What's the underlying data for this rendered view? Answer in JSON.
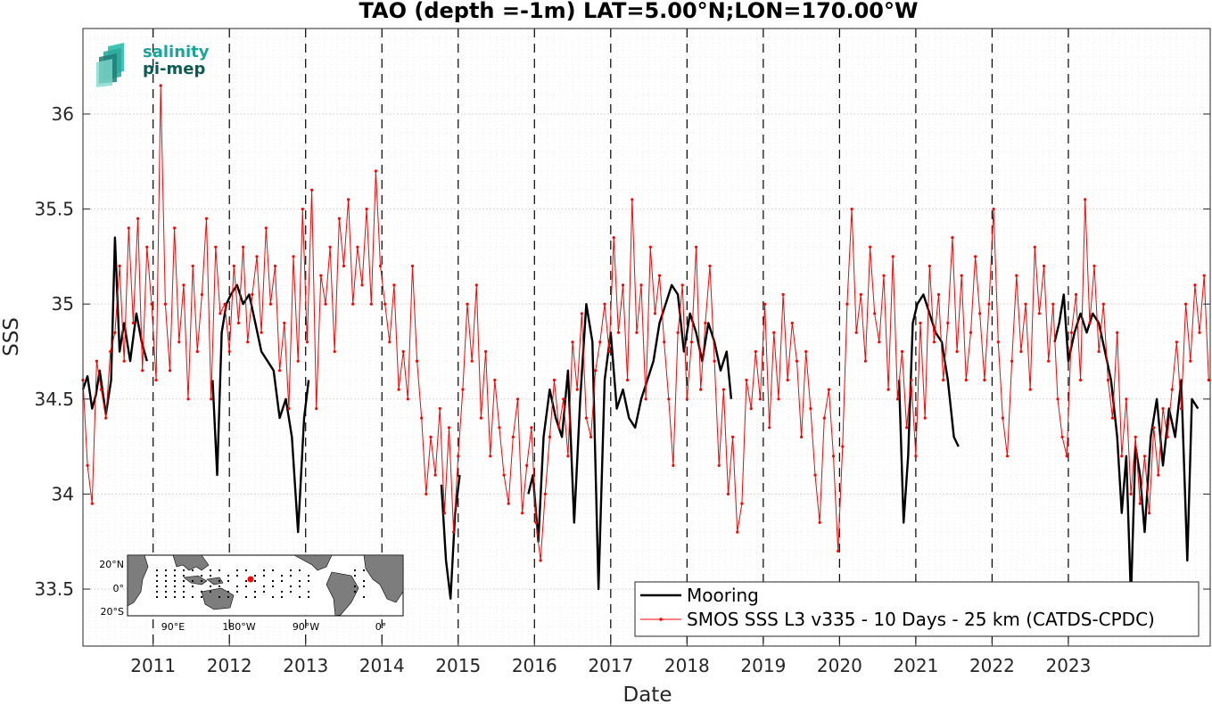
{
  "chart_data": {
    "type": "line",
    "title": "TAO (depth =-1m) LAT=5.00°N;LON=170.00°W",
    "xlabel": "Date",
    "ylabel": "SSS",
    "ylim": [
      33.2,
      36.45
    ],
    "xlim": [
      2010.08,
      2024.86
    ],
    "grid": true,
    "yticks": [
      33.5,
      34,
      34.5,
      35,
      35.5,
      36
    ],
    "xticks": [
      "2011",
      "2012",
      "2013",
      "2014",
      "2015",
      "2016",
      "2017",
      "2018",
      "2019",
      "2020",
      "2021",
      "2022",
      "2023"
    ],
    "legend_position": "bottom-right",
    "series": [
      {
        "name": "Mooring",
        "color": "#000000",
        "segments": [
          {
            "x": [
              2010.08,
              2010.14,
              2010.2,
              2010.25,
              2010.3,
              2010.38,
              2010.45,
              2010.5,
              2010.56,
              2010.62,
              2010.7,
              2010.78,
              2010.85,
              2010.92
            ],
            "y": [
              34.55,
              34.62,
              34.45,
              34.52,
              34.65,
              34.42,
              34.6,
              35.35,
              34.75,
              34.9,
              34.7,
              34.95,
              34.8,
              34.7
            ]
          },
          {
            "x": [
              2011.78,
              2011.84,
              2011.9,
              2011.96,
              2012.02,
              2012.1,
              2012.18,
              2012.26,
              2012.34,
              2012.42,
              2012.5,
              2012.58,
              2012.66,
              2012.74,
              2012.82,
              2012.9,
              2012.98,
              2013.04
            ],
            "y": [
              34.6,
              34.1,
              34.85,
              35.0,
              35.05,
              35.1,
              35.0,
              35.05,
              34.9,
              34.75,
              34.7,
              34.65,
              34.4,
              34.5,
              34.3,
              33.8,
              34.4,
              34.6
            ]
          },
          {
            "x": [
              2014.78,
              2014.84,
              2014.9,
              2014.96,
              2015.02
            ],
            "y": [
              34.05,
              33.65,
              33.45,
              33.9,
              34.1
            ]
          },
          {
            "x": [
              2015.92,
              2015.98,
              2016.05,
              2016.12,
              2016.2,
              2016.28,
              2016.36,
              2016.44,
              2016.52,
              2016.6,
              2016.68,
              2016.76,
              2016.84,
              2016.92,
              2017.0,
              2017.08,
              2017.16,
              2017.24,
              2017.32,
              2017.4,
              2017.48,
              2017.56,
              2017.64,
              2017.72,
              2017.8,
              2017.88,
              2017.96,
              2018.04,
              2018.12,
              2018.2,
              2018.28,
              2018.36,
              2018.44,
              2018.52,
              2018.58
            ],
            "y": [
              34.0,
              34.1,
              33.75,
              34.3,
              34.55,
              34.4,
              34.3,
              34.65,
              33.85,
              34.5,
              35.0,
              34.8,
              33.5,
              34.6,
              34.85,
              34.45,
              34.55,
              34.4,
              34.35,
              34.5,
              34.6,
              34.7,
              34.9,
              35.0,
              35.1,
              35.05,
              34.75,
              34.95,
              34.85,
              34.7,
              34.9,
              34.8,
              34.65,
              34.75,
              34.5
            ]
          },
          {
            "x": [
              2020.78,
              2020.84,
              2020.9,
              2020.96,
              2021.02,
              2021.1,
              2021.18,
              2021.26,
              2021.34,
              2021.42,
              2021.5,
              2021.56
            ],
            "y": [
              34.6,
              33.85,
              34.2,
              34.9,
              35.0,
              35.05,
              34.95,
              34.85,
              34.8,
              34.6,
              34.3,
              34.25
            ]
          },
          {
            "x": [
              2022.82,
              2022.88,
              2022.94,
              2023.0,
              2023.08,
              2023.16,
              2023.24,
              2023.32,
              2023.4,
              2023.48,
              2023.56,
              2023.64,
              2023.7,
              2023.76,
              2023.82,
              2023.88,
              2023.94,
              2024.0,
              2024.08,
              2024.16,
              2024.24,
              2024.32,
              2024.4,
              2024.48,
              2024.56,
              2024.62,
              2024.7
            ],
            "y": [
              34.8,
              34.9,
              35.05,
              34.7,
              34.85,
              34.95,
              34.85,
              34.95,
              34.9,
              34.75,
              34.6,
              34.3,
              33.9,
              34.2,
              33.45,
              34.25,
              34.1,
              33.8,
              34.3,
              34.5,
              34.15,
              34.45,
              34.3,
              34.6,
              33.65,
              34.5,
              34.45
            ]
          }
        ]
      },
      {
        "name": "SMOS SSS L3 v335 - 10 Days - 25 km (CATDS-CPDC)",
        "color": "#ff0000",
        "marker": "dot",
        "x": [
          2010.08,
          2010.14,
          2010.2,
          2010.26,
          2010.32,
          2010.38,
          2010.44,
          2010.5,
          2010.56,
          2010.62,
          2010.68,
          2010.74,
          2010.8,
          2010.86,
          2010.92,
          2010.98,
          2011.04,
          2011.1,
          2011.16,
          2011.22,
          2011.28,
          2011.34,
          2011.4,
          2011.46,
          2011.52,
          2011.58,
          2011.64,
          2011.7,
          2011.76,
          2011.82,
          2011.88,
          2011.94,
          2012.0,
          2012.06,
          2012.12,
          2012.18,
          2012.24,
          2012.3,
          2012.36,
          2012.42,
          2012.48,
          2012.54,
          2012.6,
          2012.66,
          2012.72,
          2012.78,
          2012.84,
          2012.9,
          2012.96,
          2013.02,
          2013.08,
          2013.14,
          2013.2,
          2013.26,
          2013.32,
          2013.38,
          2013.44,
          2013.5,
          2013.56,
          2013.62,
          2013.68,
          2013.74,
          2013.8,
          2013.86,
          2013.92,
          2013.98,
          2014.04,
          2014.1,
          2014.16,
          2014.22,
          2014.28,
          2014.34,
          2014.4,
          2014.46,
          2014.52,
          2014.58,
          2014.64,
          2014.7,
          2014.76,
          2014.82,
          2014.88,
          2014.94,
          2015.0,
          2015.06,
          2015.12,
          2015.18,
          2015.24,
          2015.3,
          2015.36,
          2015.42,
          2015.48,
          2015.54,
          2015.6,
          2015.66,
          2015.72,
          2015.78,
          2015.84,
          2015.9,
          2015.96,
          2016.02,
          2016.08,
          2016.14,
          2016.2,
          2016.26,
          2016.32,
          2016.38,
          2016.44,
          2016.5,
          2016.56,
          2016.62,
          2016.68,
          2016.74,
          2016.8,
          2016.86,
          2016.92,
          2016.98,
          2017.04,
          2017.1,
          2017.16,
          2017.22,
          2017.28,
          2017.34,
          2017.4,
          2017.46,
          2017.52,
          2017.58,
          2017.64,
          2017.7,
          2017.76,
          2017.82,
          2017.88,
          2017.94,
          2018.0,
          2018.06,
          2018.12,
          2018.18,
          2018.24,
          2018.3,
          2018.36,
          2018.42,
          2018.48,
          2018.54,
          2018.6,
          2018.66,
          2018.72,
          2018.78,
          2018.84,
          2018.9,
          2018.96,
          2019.02,
          2019.08,
          2019.14,
          2019.2,
          2019.26,
          2019.32,
          2019.38,
          2019.44,
          2019.5,
          2019.56,
          2019.62,
          2019.68,
          2019.74,
          2019.8,
          2019.86,
          2019.92,
          2019.98,
          2020.04,
          2020.1,
          2020.16,
          2020.22,
          2020.28,
          2020.34,
          2020.4,
          2020.46,
          2020.52,
          2020.58,
          2020.64,
          2020.7,
          2020.76,
          2020.82,
          2020.88,
          2020.94,
          2021.0,
          2021.06,
          2021.12,
          2021.18,
          2021.24,
          2021.3,
          2021.36,
          2021.42,
          2021.48,
          2021.54,
          2021.6,
          2021.66,
          2021.72,
          2021.78,
          2021.84,
          2021.9,
          2021.96,
          2022.02,
          2022.08,
          2022.14,
          2022.2,
          2022.26,
          2022.32,
          2022.38,
          2022.44,
          2022.5,
          2022.56,
          2022.62,
          2022.68,
          2022.74,
          2022.8,
          2022.86,
          2022.92,
          2022.98,
          2023.04,
          2023.1,
          2023.16,
          2023.22,
          2023.28,
          2023.34,
          2023.4,
          2023.46,
          2023.52,
          2023.58,
          2023.64,
          2023.7,
          2023.76,
          2023.82,
          2023.88,
          2023.94,
          2024.0,
          2024.06,
          2024.12,
          2024.18,
          2024.24,
          2024.3,
          2024.36,
          2024.42,
          2024.48,
          2024.54,
          2024.6,
          2024.66,
          2024.72,
          2024.78,
          2024.84
        ],
        "y": [
          34.6,
          34.15,
          33.95,
          34.7,
          34.55,
          34.4,
          34.75,
          34.85,
          35.2,
          34.7,
          35.4,
          34.9,
          35.45,
          34.65,
          35.3,
          35.0,
          34.6,
          36.15,
          35.0,
          34.65,
          35.4,
          34.8,
          35.1,
          34.5,
          35.2,
          34.75,
          35.05,
          35.45,
          34.5,
          35.3,
          34.95,
          35.0,
          34.75,
          35.2,
          34.9,
          35.3,
          34.8,
          35.05,
          35.25,
          34.85,
          35.4,
          35.0,
          35.2,
          34.65,
          34.9,
          34.45,
          35.25,
          34.7,
          35.5,
          34.8,
          35.6,
          34.45,
          35.15,
          35.0,
          35.3,
          34.75,
          35.45,
          35.2,
          35.55,
          35.0,
          35.3,
          35.1,
          35.5,
          35.0,
          35.7,
          35.2,
          35.0,
          34.8,
          35.1,
          34.55,
          34.75,
          34.5,
          35.2,
          34.7,
          34.4,
          34.0,
          34.3,
          34.1,
          34.45,
          33.9,
          34.35,
          33.8,
          34.2,
          34.55,
          35.0,
          34.7,
          35.1,
          34.4,
          34.75,
          34.2,
          34.6,
          34.35,
          34.1,
          33.95,
          34.3,
          34.5,
          33.9,
          34.15,
          34.35,
          33.85,
          33.65,
          34.0,
          34.3,
          34.6,
          34.35,
          34.5,
          34.2,
          34.8,
          34.55,
          34.95,
          34.4,
          34.3,
          34.65,
          34.8,
          35.0,
          34.75,
          35.35,
          34.85,
          35.1,
          34.6,
          35.55,
          34.85,
          35.1,
          34.5,
          35.3,
          34.95,
          35.15,
          34.8,
          34.5,
          34.15,
          34.85,
          35.1,
          34.5,
          34.8,
          35.3,
          34.55,
          34.9,
          35.2,
          34.7,
          34.15,
          34.55,
          34.0,
          34.3,
          33.8,
          33.95,
          34.6,
          34.45,
          34.75,
          34.5,
          35.0,
          34.35,
          34.85,
          34.5,
          35.05,
          34.6,
          34.9,
          34.7,
          34.3,
          34.75,
          34.45,
          34.1,
          33.85,
          34.4,
          34.55,
          34.2,
          33.7,
          34.25,
          35.0,
          35.5,
          34.85,
          35.05,
          34.7,
          35.3,
          34.95,
          34.8,
          35.15,
          34.55,
          35.25,
          34.5,
          34.75,
          34.35,
          34.6,
          34.2,
          34.9,
          34.4,
          35.2,
          34.8,
          35.05,
          34.6,
          34.9,
          35.35,
          34.75,
          35.15,
          34.6,
          34.85,
          35.25,
          34.95,
          34.6,
          35.0,
          35.5,
          34.8,
          34.4,
          34.2,
          34.7,
          35.15,
          34.75,
          35.0,
          34.55,
          35.3,
          34.95,
          35.2,
          34.7,
          35.0,
          34.5,
          34.3,
          34.2,
          34.85,
          35.05,
          34.6,
          35.55,
          34.9,
          35.2,
          34.75,
          35.0,
          34.6,
          34.4,
          34.85,
          34.2,
          34.5,
          34.0,
          34.3,
          33.95,
          34.2,
          33.9,
          34.35,
          34.1,
          34.45,
          34.3,
          34.55,
          34.8,
          34.45,
          35.0,
          34.7,
          35.1,
          34.85,
          35.15,
          34.6
        ]
      }
    ]
  },
  "logo": {
    "line1": "salinity",
    "line2": "pi-mep"
  },
  "inset_map": {
    "lat_labels": [
      "20°N",
      "0°",
      "20°S"
    ],
    "lon_labels": [
      "90°E",
      "180°W",
      "90°W",
      "0°"
    ]
  },
  "colors": {
    "mooring": "#000000",
    "smos": "#ff0000",
    "logo_teal": "#1aa59b",
    "logo_dark": "#0d5a55"
  }
}
